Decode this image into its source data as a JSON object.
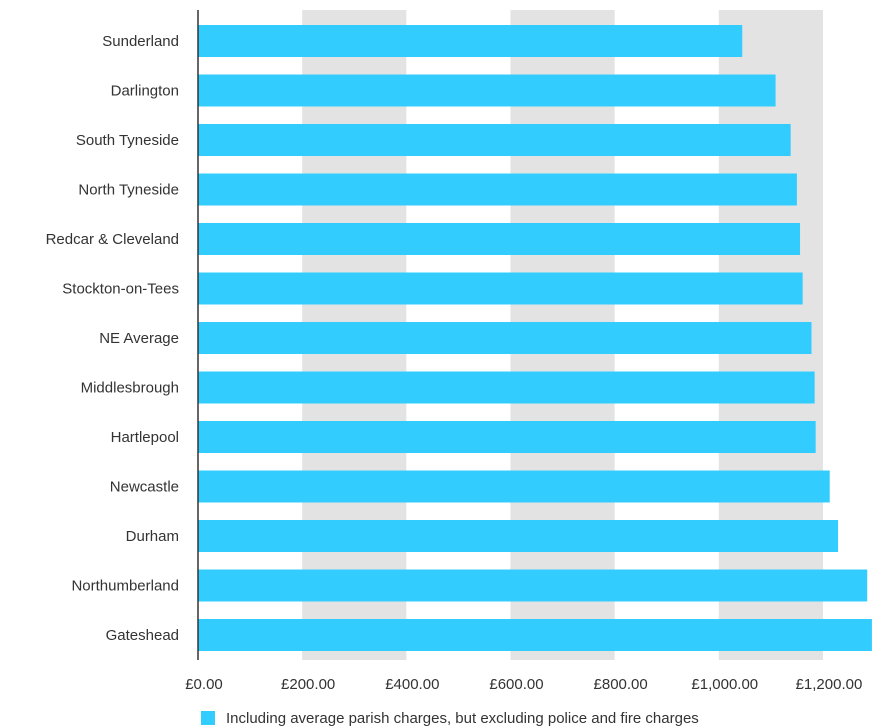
{
  "chart_data": {
    "type": "bar",
    "orientation": "horizontal",
    "categories": [
      "Sunderland",
      "Darlington",
      "South Tyneside",
      "North Tyneside",
      "Redcar & Cleveland",
      "Stockton-on-Tees",
      "NE Average",
      "Middlesbrough",
      "Hartlepool",
      "Newcastle",
      "Durham",
      "Northumberland",
      "Gateshead"
    ],
    "series": [
      {
        "name": "Including average parish charges, but excluding police and fire charges",
        "color": "#33ccff",
        "values": [
          1045,
          1109,
          1138,
          1150,
          1156,
          1161,
          1178,
          1184,
          1186,
          1213,
          1229,
          1285,
          1294
        ]
      }
    ],
    "x_ticks": [
      "£0.00",
      "£200.00",
      "£400.00",
      "£600.00",
      "£800.00",
      "£1,000.00",
      "£1,200.00"
    ],
    "xlim": [
      0,
      1300
    ],
    "grid": "alternating vertical bands",
    "legend_position": "bottom",
    "colors": {
      "bar": "#33ccff",
      "band": "#e3e3e3",
      "axis": "#333333"
    }
  }
}
